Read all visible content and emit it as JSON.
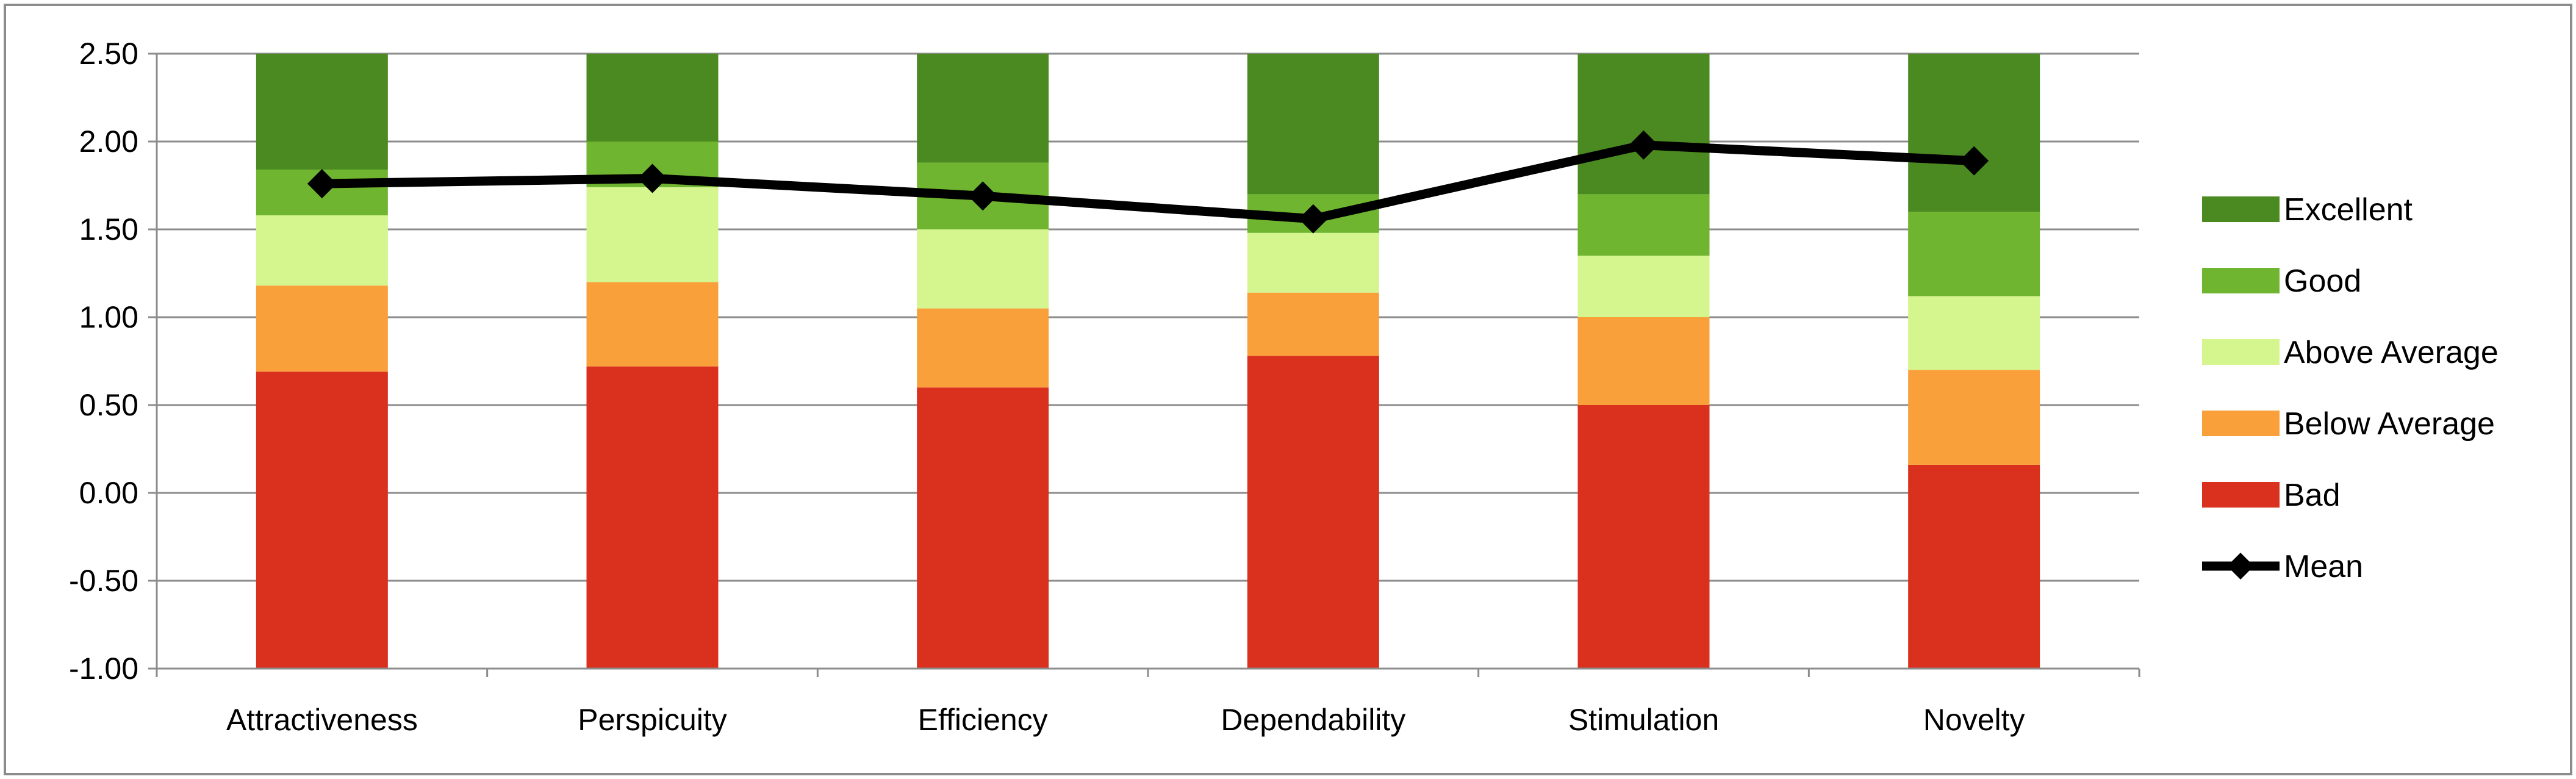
{
  "chart_data": {
    "type": "bar",
    "subtype": "stacked-bar-with-line",
    "title": "",
    "xlabel": "",
    "ylabel": "",
    "ylim": [
      -1.0,
      2.5
    ],
    "yticks": [
      "2.50",
      "2.00",
      "1.50",
      "1.00",
      "0.50",
      "0.00",
      "-0.50",
      "-1.00"
    ],
    "ytick_values": [
      2.5,
      2.0,
      1.5,
      1.0,
      0.5,
      0.0,
      -0.5,
      -1.0
    ],
    "grid": "horizontal",
    "legend_position": "right",
    "categories": [
      "Attractiveness",
      "Perspicuity",
      "Efficiency",
      "Dependability",
      "Stimulation",
      "Novelty"
    ],
    "series": [
      {
        "name": "Bad",
        "color": "#d9311e",
        "top": [
          0.69,
          0.72,
          0.6,
          0.78,
          0.5,
          0.16
        ]
      },
      {
        "name": "Below Average",
        "color": "#f9a03a",
        "top": [
          1.18,
          1.2,
          1.05,
          1.14,
          1.0,
          0.7
        ]
      },
      {
        "name": "Above Average",
        "color": "#d5f58f",
        "top": [
          1.58,
          1.74,
          1.5,
          1.48,
          1.35,
          1.12
        ]
      },
      {
        "name": "Good",
        "color": "#6fb52f",
        "top": [
          1.84,
          2.0,
          1.88,
          1.7,
          1.7,
          1.6
        ]
      },
      {
        "name": "Excellent",
        "color": "#4b8a21",
        "top": [
          2.5,
          2.5,
          2.5,
          2.5,
          2.5,
          2.5
        ]
      }
    ],
    "mean": {
      "name": "Mean",
      "color": "#000000",
      "values": [
        1.76,
        1.79,
        1.69,
        1.56,
        1.98,
        1.89
      ]
    },
    "legend": [
      "Excellent",
      "Good",
      "Above Average",
      "Below Average",
      "Bad",
      "Mean"
    ]
  }
}
